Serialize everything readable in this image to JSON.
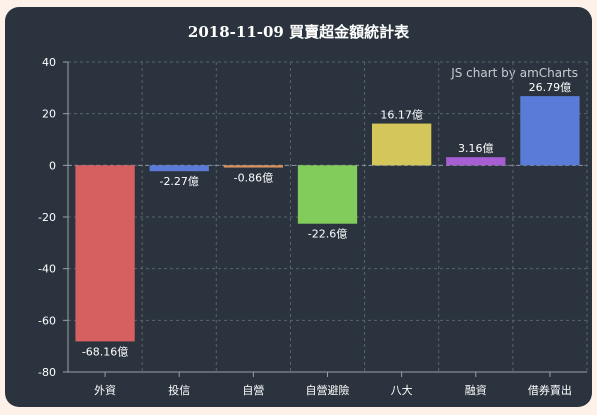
{
  "chart_data": {
    "type": "bar",
    "title": "2018-11-09 買賣超金額統計表",
    "credit": "JS chart by amCharts",
    "categories": [
      "外資",
      "投信",
      "自營",
      "自營避險",
      "八大",
      "融資",
      "借券賣出"
    ],
    "values": [
      -68.16,
      -2.27,
      -0.86,
      -22.6,
      16.17,
      3.16,
      26.79
    ],
    "value_labels": [
      "-68.16億",
      "-2.27億",
      "-0.86億",
      "-22.6億",
      "16.17億",
      "3.16億",
      "26.79億"
    ],
    "colors": [
      "#d65f5f",
      "#5b7bd8",
      "#d8925c",
      "#82cc5c",
      "#d4c65a",
      "#a65ed2",
      "#5b7bd8"
    ],
    "ylim": [
      -80,
      40
    ],
    "yticks": [
      -80,
      -60,
      -40,
      -20,
      0,
      20,
      40
    ],
    "xlabel": "",
    "ylabel": "",
    "grid": true
  }
}
